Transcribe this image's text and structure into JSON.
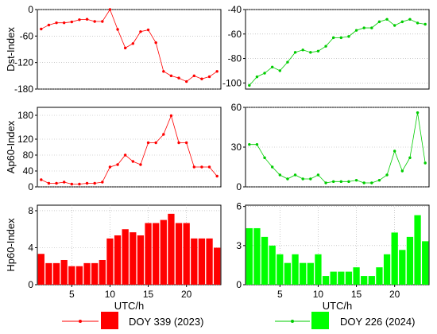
{
  "figure": {
    "legend": {
      "red_label": "DOY 339 (2023)",
      "green_label": "DOY 226 (2024)"
    }
  },
  "chart_data": [
    {
      "id": "dst-red",
      "type": "line",
      "ylabel": "Dst-Index",
      "xlabel": "",
      "color": "#ff0000",
      "xlim": [
        0.5,
        24.5
      ],
      "ylim": [
        -180,
        0
      ],
      "yticks": [
        0,
        -60,
        -120,
        -180
      ],
      "xticks": [],
      "grid": true,
      "x": [
        1,
        2,
        3,
        4,
        5,
        6,
        7,
        8,
        9,
        10,
        11,
        12,
        13,
        14,
        15,
        16,
        17,
        18,
        19,
        20,
        21,
        22,
        23,
        24
      ],
      "values": [
        -44,
        -35,
        -30,
        -30,
        -28,
        -23,
        -22,
        -27,
        -27,
        0,
        -45,
        -87,
        -77,
        -50,
        -46,
        -75,
        -140,
        -150,
        -155,
        -163,
        -150,
        -157,
        -152,
        -140
      ]
    },
    {
      "id": "dst-green",
      "type": "line",
      "ylabel": "",
      "xlabel": "",
      "color": "#00cc00",
      "xlim": [
        0.5,
        24.5
      ],
      "ylim": [
        -105,
        -40
      ],
      "yticks": [
        -40,
        -60,
        -80,
        -100
      ],
      "xticks": [],
      "grid": true,
      "x": [
        1,
        2,
        3,
        4,
        5,
        6,
        7,
        8,
        9,
        10,
        11,
        12,
        13,
        14,
        15,
        16,
        17,
        18,
        19,
        20,
        21,
        22,
        23,
        24
      ],
      "values": [
        -102,
        -95,
        -92,
        -87,
        -90,
        -83,
        -75,
        -73,
        -75,
        -74,
        -70,
        -63,
        -63,
        -62,
        -57,
        -55,
        -55,
        -50,
        -48,
        -53,
        -50,
        -48,
        -51,
        -52
      ]
    },
    {
      "id": "ap-red",
      "type": "line",
      "ylabel": "Ap60-Index",
      "xlabel": "",
      "color": "#ff0000",
      "xlim": [
        0.5,
        24.5
      ],
      "ylim": [
        0,
        200
      ],
      "yticks": [
        0,
        40,
        80,
        120,
        180
      ],
      "xticks": [],
      "grid": true,
      "x": [
        1,
        2,
        3,
        4,
        5,
        6,
        7,
        8,
        9,
        10,
        11,
        12,
        13,
        14,
        15,
        16,
        17,
        18,
        19,
        20,
        21,
        22,
        23,
        24
      ],
      "values": [
        18,
        9,
        9,
        12,
        7,
        7,
        9,
        9,
        12,
        50,
        56,
        80,
        64,
        56,
        111,
        111,
        132,
        179,
        111,
        111,
        50,
        50,
        50,
        27
      ]
    },
    {
      "id": "ap-green",
      "type": "line",
      "ylabel": "",
      "xlabel": "",
      "color": "#00cc00",
      "xlim": [
        0.5,
        24.5
      ],
      "ylim": [
        0,
        60
      ],
      "yticks": [
        0,
        30,
        60
      ],
      "xticks": [],
      "grid": true,
      "x": [
        1,
        2,
        3,
        4,
        5,
        6,
        7,
        8,
        9,
        10,
        11,
        12,
        13,
        14,
        15,
        16,
        17,
        18,
        19,
        20,
        21,
        22,
        23,
        24
      ],
      "values": [
        32,
        32,
        22,
        15,
        9,
        6,
        9,
        6,
        6,
        9,
        3,
        4,
        4,
        4,
        5,
        3,
        3,
        5,
        9,
        27,
        12,
        22,
        56,
        18
      ]
    },
    {
      "id": "hp-red",
      "type": "bar",
      "ylabel": "Hp60-Index",
      "xlabel": "UTC/h",
      "color": "#ff0000",
      "xlim": [
        0.5,
        24.5
      ],
      "ylim": [
        0,
        8.6
      ],
      "yticks": [
        0,
        4,
        8
      ],
      "xticks": [
        5,
        10,
        15,
        20
      ],
      "grid": true,
      "x": [
        1,
        2,
        3,
        4,
        5,
        6,
        7,
        8,
        9,
        10,
        11,
        12,
        13,
        14,
        15,
        16,
        17,
        18,
        19,
        20,
        21,
        22,
        23,
        24
      ],
      "values": [
        3.333,
        2.333,
        2.333,
        2.667,
        2.0,
        2.0,
        2.333,
        2.333,
        2.667,
        5.0,
        5.333,
        6.0,
        5.667,
        5.333,
        6.667,
        6.667,
        7.0,
        7.667,
        6.667,
        6.667,
        5.0,
        5.0,
        5.0,
        4.0
      ]
    },
    {
      "id": "hp-green",
      "type": "bar",
      "ylabel": "",
      "xlabel": "UTC/h",
      "color": "#00ff00",
      "xlim": [
        0.5,
        24.5
      ],
      "ylim": [
        0,
        6.1
      ],
      "yticks": [
        0,
        3,
        6
      ],
      "xticks": [
        5,
        10,
        15,
        20
      ],
      "grid": true,
      "x": [
        1,
        2,
        3,
        4,
        5,
        6,
        7,
        8,
        9,
        10,
        11,
        12,
        13,
        14,
        15,
        16,
        17,
        18,
        19,
        20,
        21,
        22,
        23,
        24
      ],
      "values": [
        4.333,
        4.333,
        3.667,
        3.0,
        2.333,
        1.667,
        2.333,
        1.667,
        1.667,
        2.333,
        0.667,
        1.0,
        1.0,
        1.0,
        1.333,
        0.667,
        0.667,
        1.333,
        2.333,
        4.0,
        2.667,
        3.667,
        5.333,
        3.333
      ]
    }
  ]
}
